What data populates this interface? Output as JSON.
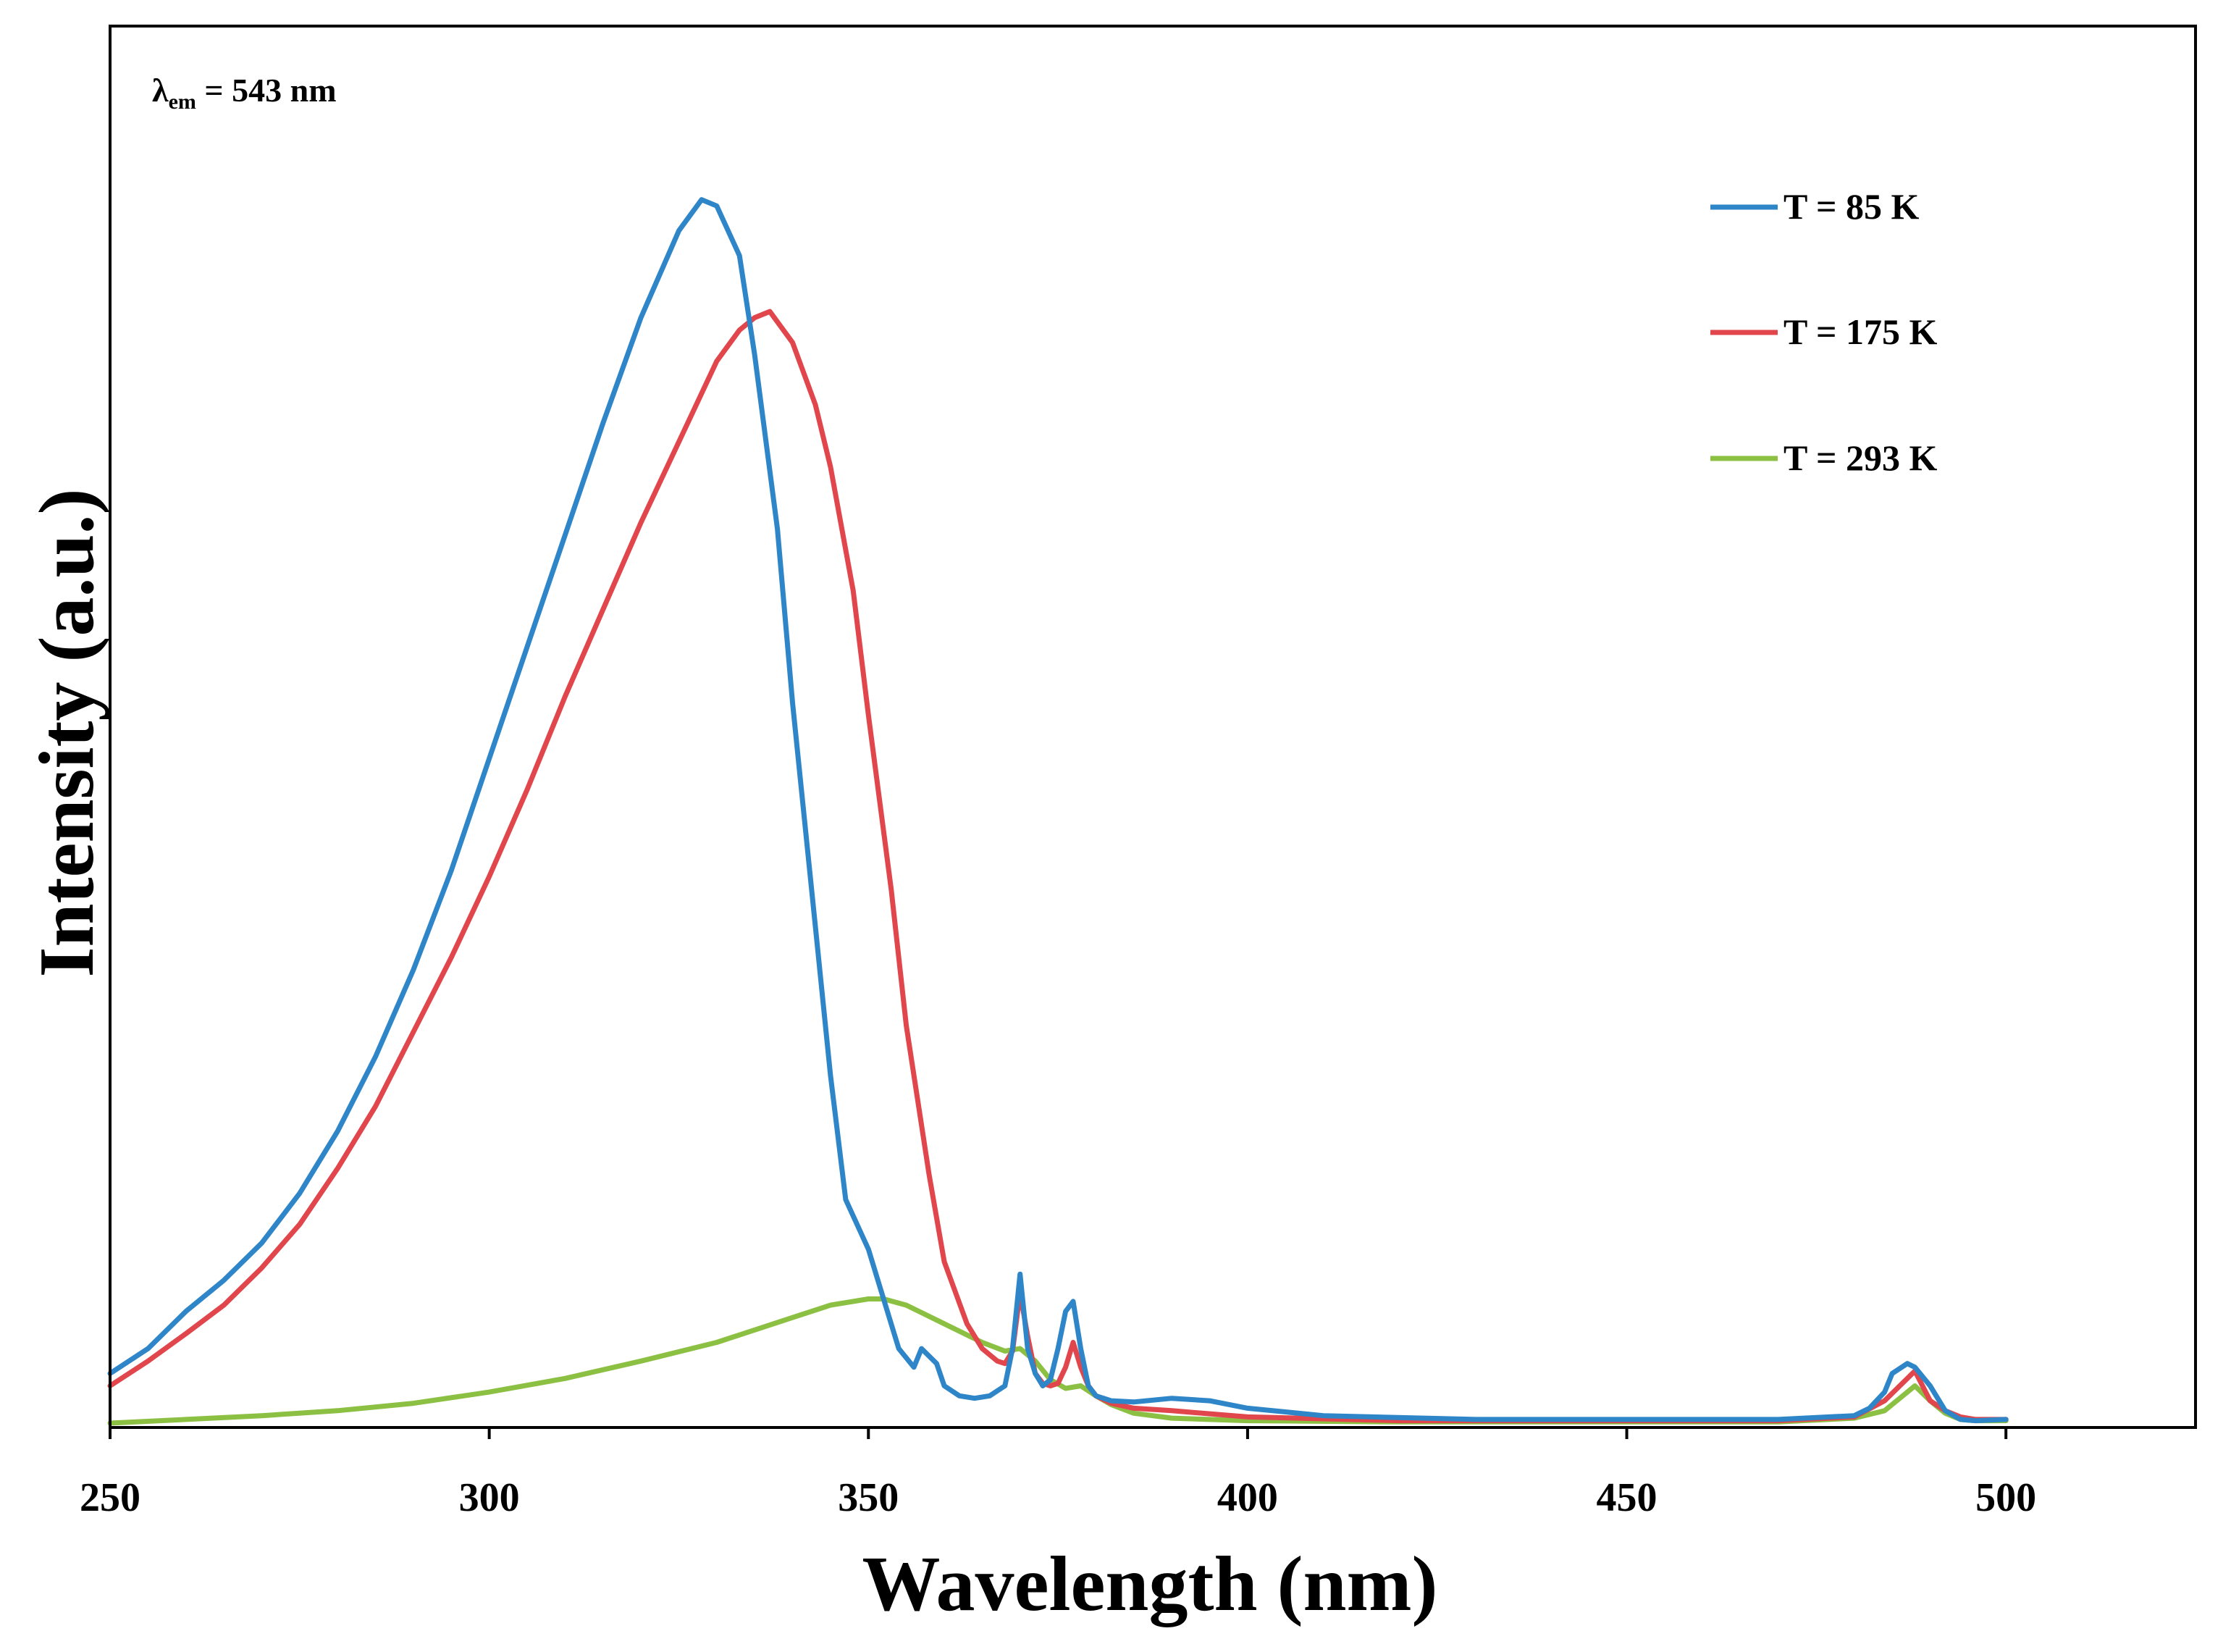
{
  "chart_data": {
    "type": "line",
    "title": "",
    "xlabel": "Wavelength (nm)",
    "ylabel": "Intensity (a.u.)",
    "xlim": [
      250,
      525
    ],
    "ylim": [
      0,
      1.0
    ],
    "xticks": [
      250,
      300,
      350,
      400,
      450,
      500
    ],
    "yticks_shown": false,
    "grid": false,
    "annotation": {
      "symbol": "λ",
      "subscript": "em",
      "text": " = 543 nm"
    },
    "legend_position": "top-right",
    "colors": {
      "T85": "#2e86c8",
      "T175": "#e0464b",
      "T293": "#8cc043"
    },
    "series": [
      {
        "name": "T = 85 K",
        "color": "#2e86c8",
        "x": [
          250,
          255,
          260,
          265,
          270,
          275,
          280,
          285,
          290,
          295,
          300,
          305,
          310,
          315,
          320,
          325,
          328,
          330,
          333,
          335,
          338,
          340,
          343,
          345,
          347,
          350,
          352,
          354,
          356,
          357,
          359,
          360,
          362,
          364,
          366,
          368,
          369,
          370,
          371,
          372,
          373,
          374,
          375,
          376,
          377,
          378,
          379,
          380,
          382,
          385,
          390,
          395,
          400,
          410,
          430,
          450,
          470,
          480,
          482,
          484,
          485,
          487,
          488,
          490,
          492,
          494,
          496,
          500
        ],
        "y": [
          0.04,
          0.06,
          0.09,
          0.115,
          0.145,
          0.185,
          0.235,
          0.295,
          0.365,
          0.445,
          0.535,
          0.625,
          0.715,
          0.805,
          0.89,
          0.96,
          0.985,
          0.98,
          0.94,
          0.86,
          0.72,
          0.58,
          0.4,
          0.28,
          0.18,
          0.14,
          0.1,
          0.06,
          0.045,
          0.06,
          0.048,
          0.03,
          0.022,
          0.02,
          0.022,
          0.03,
          0.06,
          0.12,
          0.06,
          0.04,
          0.03,
          0.035,
          0.06,
          0.09,
          0.098,
          0.06,
          0.03,
          0.022,
          0.018,
          0.017,
          0.02,
          0.018,
          0.012,
          0.006,
          0.003,
          0.003,
          0.003,
          0.006,
          0.012,
          0.025,
          0.04,
          0.048,
          0.045,
          0.03,
          0.01,
          0.003,
          0.002,
          0.003
        ]
      },
      {
        "name": "T = 175 K",
        "color": "#e0464b",
        "x": [
          250,
          255,
          260,
          265,
          270,
          275,
          280,
          285,
          290,
          295,
          300,
          305,
          310,
          315,
          320,
          325,
          330,
          333,
          335,
          337,
          340,
          343,
          345,
          348,
          350,
          353,
          355,
          358,
          360,
          363,
          365,
          367,
          368,
          369,
          370,
          371,
          372,
          373,
          374,
          375,
          376,
          377,
          378,
          379,
          380,
          382,
          385,
          390,
          400,
          420,
          450,
          470,
          480,
          484,
          486,
          488,
          489,
          490,
          492,
          494,
          496,
          500
        ],
        "y": [
          0.03,
          0.05,
          0.072,
          0.095,
          0.125,
          0.16,
          0.205,
          0.255,
          0.315,
          0.375,
          0.44,
          0.51,
          0.585,
          0.655,
          0.725,
          0.79,
          0.855,
          0.88,
          0.89,
          0.895,
          0.87,
          0.82,
          0.77,
          0.67,
          0.57,
          0.43,
          0.32,
          0.2,
          0.13,
          0.08,
          0.06,
          0.05,
          0.048,
          0.058,
          0.105,
          0.07,
          0.04,
          0.032,
          0.03,
          0.032,
          0.045,
          0.065,
          0.045,
          0.03,
          0.022,
          0.016,
          0.012,
          0.01,
          0.005,
          0.002,
          0.002,
          0.002,
          0.005,
          0.018,
          0.03,
          0.042,
          0.03,
          0.018,
          0.01,
          0.005,
          0.003,
          0.003
        ]
      },
      {
        "name": "T = 293 K",
        "color": "#8cc043",
        "x": [
          250,
          260,
          270,
          280,
          290,
          300,
          310,
          320,
          330,
          340,
          345,
          350,
          352,
          355,
          360,
          365,
          368,
          370,
          372,
          374,
          376,
          378,
          380,
          382,
          385,
          390,
          400,
          420,
          450,
          470,
          480,
          484,
          486,
          488,
          490,
          492,
          494,
          496,
          500
        ],
        "y": [
          0.0,
          0.003,
          0.006,
          0.01,
          0.016,
          0.025,
          0.036,
          0.05,
          0.065,
          0.085,
          0.095,
          0.1,
          0.1,
          0.095,
          0.08,
          0.065,
          0.058,
          0.06,
          0.05,
          0.035,
          0.028,
          0.03,
          0.022,
          0.015,
          0.008,
          0.004,
          0.002,
          0.001,
          0.001,
          0.001,
          0.004,
          0.01,
          0.02,
          0.03,
          0.018,
          0.008,
          0.003,
          0.002,
          0.002
        ]
      }
    ]
  }
}
